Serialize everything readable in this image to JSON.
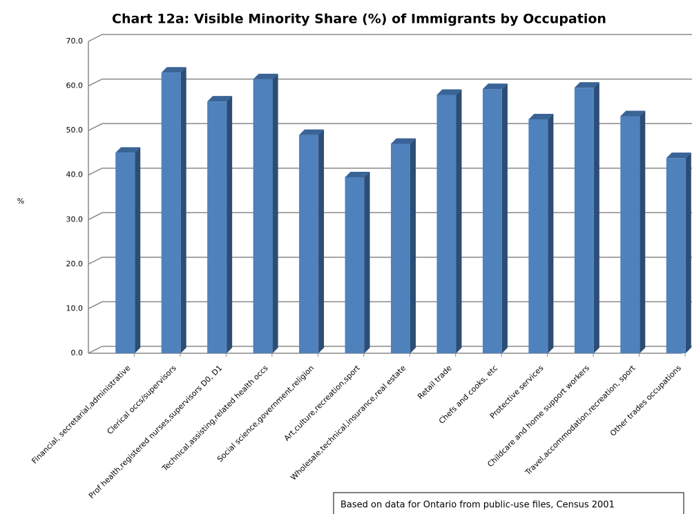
{
  "chart_data": {
    "type": "bar",
    "title": "Chart 12a: Visible Minority Share (%) of Immigrants by Occupation",
    "y_label": "%",
    "categories": [
      "Financial, secretarial,administrative",
      "Clerical occs/supervisors",
      "Prof health,registered nurses,supervisors D0, D1",
      "Technical,assisting,related health occs",
      "Social science,government,religion",
      "Art,culture,recreation,sport",
      "Wholesale,technical,insurance,real estate",
      "Retail trade",
      "Chefs and cooks, etc",
      "Protective services",
      "Childcare and home support workers",
      "Travel,accommodation,recreation, sport",
      "Other trades occupations"
    ],
    "values": [
      45,
      63,
      56.5,
      61.5,
      49,
      39.5,
      47,
      58,
      59.3,
      52.5,
      59.6,
      53.2,
      43.8
    ],
    "color": "#4f81bd",
    "ylim": [
      0,
      70
    ],
    "yticks": [
      {
        "value": 0,
        "label": "0.0"
      },
      {
        "value": 10,
        "label": "10.0"
      },
      {
        "value": 20,
        "label": "20.0"
      },
      {
        "value": 30,
        "label": "30.0"
      },
      {
        "value": 40,
        "label": "40.0"
      },
      {
        "value": 50,
        "label": "50.0"
      },
      {
        "value": 60,
        "label": "60.0"
      },
      {
        "value": 70,
        "label": "70.0"
      }
    ],
    "grid": true,
    "note": "Based on data for Ontario from public-use files, Census 2001"
  }
}
